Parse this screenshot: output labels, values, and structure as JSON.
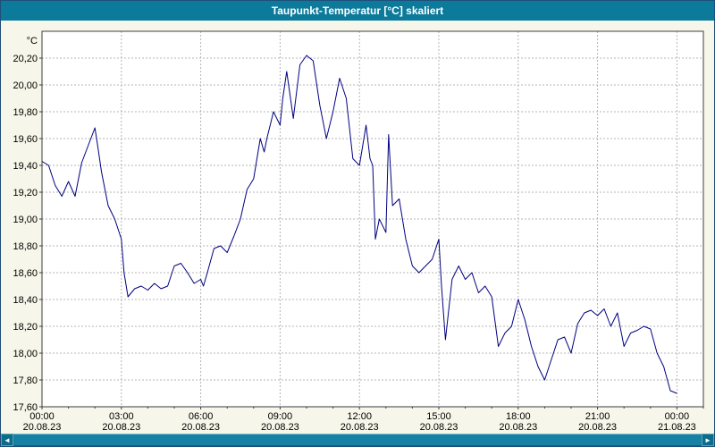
{
  "window": {
    "title": "Taupunkt-Temperatur [°C] skaliert"
  },
  "colors": {
    "title_bar": "#0b7a9b",
    "window_bg": "#f7f6ea",
    "plot_bg": "#ffffff",
    "line": "#000080",
    "grid": "#b4b4b4",
    "plot_border": "#3c3c3c",
    "outer_border": "#1f4e79",
    "scrollbar": "#1581a5",
    "scrollbar_button": "#0a6d8c",
    "scrollbar_track": "#7fb6c9"
  },
  "scrollbar": {
    "left_arrow": "◄",
    "right_arrow": "►"
  },
  "chart_data": {
    "type": "line",
    "title": "Taupunkt-Temperatur [°C] skaliert",
    "ylabel": "°C",
    "xlabel": "",
    "grid": true,
    "decimal_comma": true,
    "ylim": [
      17.6,
      20.4
    ],
    "yticks": [
      17.6,
      17.8,
      18.0,
      18.2,
      18.4,
      18.6,
      18.8,
      19.0,
      19.2,
      19.4,
      19.6,
      19.8,
      20.0,
      20.2
    ],
    "xlim_hours": [
      0,
      25
    ],
    "xticks": [
      {
        "hour": 0,
        "time": "00:00",
        "date": "20.08.23"
      },
      {
        "hour": 3,
        "time": "03:00",
        "date": "20.08.23"
      },
      {
        "hour": 6,
        "time": "06:00",
        "date": "20.08.23"
      },
      {
        "hour": 9,
        "time": "09:00",
        "date": "20.08.23"
      },
      {
        "hour": 12,
        "time": "12:00",
        "date": "20.08.23"
      },
      {
        "hour": 15,
        "time": "15:00",
        "date": "20.08.23"
      },
      {
        "hour": 18,
        "time": "18:00",
        "date": "20.08.23"
      },
      {
        "hour": 21,
        "time": "21:00",
        "date": "20.08.23"
      },
      {
        "hour": 24,
        "time": "00:00",
        "date": "21.08.23"
      }
    ],
    "x": [
      0,
      0.25,
      0.5,
      0.75,
      1,
      1.25,
      1.5,
      1.75,
      2,
      2.1,
      2.25,
      2.5,
      2.75,
      3,
      3.1,
      3.25,
      3.5,
      3.75,
      4,
      4.25,
      4.5,
      4.75,
      5,
      5.25,
      5.5,
      5.75,
      6,
      6.1,
      6.25,
      6.5,
      6.75,
      7,
      7.25,
      7.5,
      7.75,
      8,
      8.25,
      8.4,
      8.5,
      8.75,
      9,
      9.1,
      9.25,
      9.5,
      9.75,
      10,
      10.25,
      10.5,
      10.75,
      11,
      11.25,
      11.5,
      11.75,
      12,
      12.25,
      12.4,
      12.5,
      12.6,
      12.75,
      13,
      13.1,
      13.25,
      13.5,
      13.75,
      14,
      14.25,
      14.5,
      14.75,
      15,
      15.1,
      15.25,
      15.5,
      15.75,
      16,
      16.25,
      16.5,
      16.75,
      17,
      17.25,
      17.5,
      17.75,
      18,
      18.25,
      18.5,
      18.75,
      19,
      19.25,
      19.5,
      19.75,
      20,
      20.25,
      20.5,
      20.75,
      21,
      21.25,
      21.5,
      21.75,
      22,
      22.25,
      22.5,
      22.75,
      23,
      23.25,
      23.5,
      23.75,
      24
    ],
    "y": [
      19.43,
      19.4,
      19.25,
      19.17,
      19.28,
      19.17,
      19.42,
      19.55,
      19.68,
      19.55,
      19.35,
      19.1,
      19.0,
      18.85,
      18.6,
      18.42,
      18.48,
      18.5,
      18.47,
      18.52,
      18.48,
      18.5,
      18.65,
      18.67,
      18.6,
      18.52,
      18.55,
      18.5,
      18.6,
      18.78,
      18.8,
      18.75,
      18.87,
      19.0,
      19.22,
      19.3,
      19.6,
      19.5,
      19.6,
      19.8,
      19.7,
      19.9,
      20.1,
      19.75,
      20.15,
      20.22,
      20.18,
      19.85,
      19.6,
      19.8,
      20.05,
      19.9,
      19.45,
      19.4,
      19.7,
      19.45,
      19.4,
      18.85,
      19.0,
      18.9,
      19.63,
      19.1,
      19.15,
      18.85,
      18.65,
      18.6,
      18.65,
      18.7,
      18.85,
      18.5,
      18.1,
      18.55,
      18.65,
      18.55,
      18.6,
      18.45,
      18.5,
      18.42,
      18.05,
      18.15,
      18.2,
      18.4,
      18.25,
      18.05,
      17.9,
      17.8,
      17.95,
      18.1,
      18.12,
      18.0,
      18.22,
      18.3,
      18.32,
      18.28,
      18.33,
      18.2,
      18.3,
      18.05,
      18.15,
      18.17,
      18.2,
      18.18,
      18.0,
      17.9,
      17.72,
      17.7
    ]
  }
}
